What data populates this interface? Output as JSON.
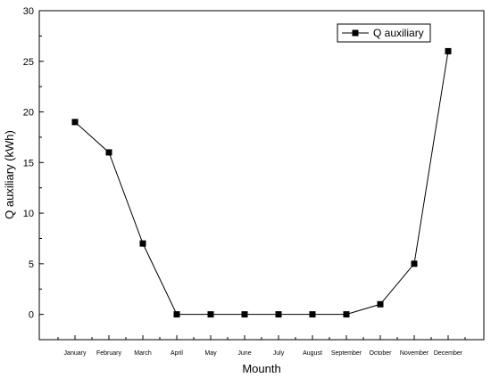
{
  "chart_data": {
    "type": "line",
    "title": "",
    "xlabel": "Mounth",
    "ylabel": "Q auxiliary (kWh)",
    "categories": [
      "January",
      "February",
      "March",
      "April",
      "May",
      "June",
      "July",
      "August",
      "September",
      "October",
      "November",
      "December"
    ],
    "series": [
      {
        "name": "Q auxiliary",
        "values": [
          19,
          16,
          7,
          0,
          0,
          0,
          0,
          0,
          0,
          1,
          5,
          26
        ],
        "color": "#000000",
        "marker": "square"
      }
    ],
    "ylim": [
      -2.5,
      30
    ],
    "yticks": [
      0,
      5,
      10,
      15,
      20,
      25,
      30
    ],
    "grid": false,
    "legend": "top-right"
  }
}
